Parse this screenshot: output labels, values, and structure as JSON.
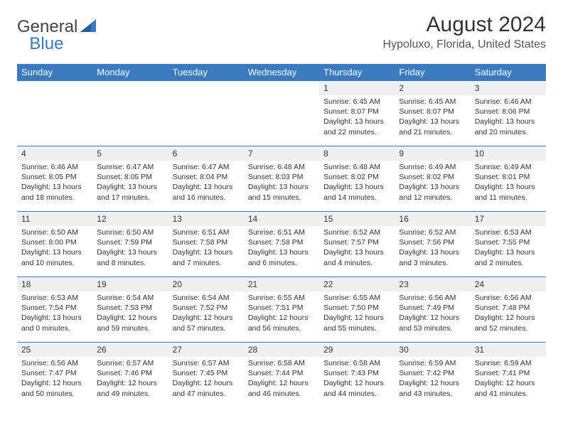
{
  "logo": {
    "general": "General",
    "blue": "Blue"
  },
  "title": "August 2024",
  "location": "Hypoluxo, Florida, United States",
  "colors": {
    "header_bg": "#3a7bbf",
    "header_fg": "#ffffff",
    "daynum_bg": "#f0f0f0",
    "row_border": "#3a7bbf",
    "text": "#333333",
    "logo_gray": "#444444",
    "logo_blue": "#3a7bbf"
  },
  "weekdays": [
    "Sunday",
    "Monday",
    "Tuesday",
    "Wednesday",
    "Thursday",
    "Friday",
    "Saturday"
  ],
  "weeks": [
    [
      null,
      null,
      null,
      null,
      {
        "n": "1",
        "sr": "6:45 AM",
        "ss": "8:07 PM",
        "dl": "13 hours and 22 minutes."
      },
      {
        "n": "2",
        "sr": "6:45 AM",
        "ss": "8:07 PM",
        "dl": "13 hours and 21 minutes."
      },
      {
        "n": "3",
        "sr": "6:46 AM",
        "ss": "8:06 PM",
        "dl": "13 hours and 20 minutes."
      }
    ],
    [
      {
        "n": "4",
        "sr": "6:46 AM",
        "ss": "8:05 PM",
        "dl": "13 hours and 18 minutes."
      },
      {
        "n": "5",
        "sr": "6:47 AM",
        "ss": "8:05 PM",
        "dl": "13 hours and 17 minutes."
      },
      {
        "n": "6",
        "sr": "6:47 AM",
        "ss": "8:04 PM",
        "dl": "13 hours and 16 minutes."
      },
      {
        "n": "7",
        "sr": "6:48 AM",
        "ss": "8:03 PM",
        "dl": "13 hours and 15 minutes."
      },
      {
        "n": "8",
        "sr": "6:48 AM",
        "ss": "8:02 PM",
        "dl": "13 hours and 14 minutes."
      },
      {
        "n": "9",
        "sr": "6:49 AM",
        "ss": "8:02 PM",
        "dl": "13 hours and 12 minutes."
      },
      {
        "n": "10",
        "sr": "6:49 AM",
        "ss": "8:01 PM",
        "dl": "13 hours and 11 minutes."
      }
    ],
    [
      {
        "n": "11",
        "sr": "6:50 AM",
        "ss": "8:00 PM",
        "dl": "13 hours and 10 minutes."
      },
      {
        "n": "12",
        "sr": "6:50 AM",
        "ss": "7:59 PM",
        "dl": "13 hours and 8 minutes."
      },
      {
        "n": "13",
        "sr": "6:51 AM",
        "ss": "7:58 PM",
        "dl": "13 hours and 7 minutes."
      },
      {
        "n": "14",
        "sr": "6:51 AM",
        "ss": "7:58 PM",
        "dl": "13 hours and 6 minutes."
      },
      {
        "n": "15",
        "sr": "6:52 AM",
        "ss": "7:57 PM",
        "dl": "13 hours and 4 minutes."
      },
      {
        "n": "16",
        "sr": "6:52 AM",
        "ss": "7:56 PM",
        "dl": "13 hours and 3 minutes."
      },
      {
        "n": "17",
        "sr": "6:53 AM",
        "ss": "7:55 PM",
        "dl": "13 hours and 2 minutes."
      }
    ],
    [
      {
        "n": "18",
        "sr": "6:53 AM",
        "ss": "7:54 PM",
        "dl": "13 hours and 0 minutes."
      },
      {
        "n": "19",
        "sr": "6:54 AM",
        "ss": "7:53 PM",
        "dl": "12 hours and 59 minutes."
      },
      {
        "n": "20",
        "sr": "6:54 AM",
        "ss": "7:52 PM",
        "dl": "12 hours and 57 minutes."
      },
      {
        "n": "21",
        "sr": "6:55 AM",
        "ss": "7:51 PM",
        "dl": "12 hours and 56 minutes."
      },
      {
        "n": "22",
        "sr": "6:55 AM",
        "ss": "7:50 PM",
        "dl": "12 hours and 55 minutes."
      },
      {
        "n": "23",
        "sr": "6:56 AM",
        "ss": "7:49 PM",
        "dl": "12 hours and 53 minutes."
      },
      {
        "n": "24",
        "sr": "6:56 AM",
        "ss": "7:48 PM",
        "dl": "12 hours and 52 minutes."
      }
    ],
    [
      {
        "n": "25",
        "sr": "6:56 AM",
        "ss": "7:47 PM",
        "dl": "12 hours and 50 minutes."
      },
      {
        "n": "26",
        "sr": "6:57 AM",
        "ss": "7:46 PM",
        "dl": "12 hours and 49 minutes."
      },
      {
        "n": "27",
        "sr": "6:57 AM",
        "ss": "7:45 PM",
        "dl": "12 hours and 47 minutes."
      },
      {
        "n": "28",
        "sr": "6:58 AM",
        "ss": "7:44 PM",
        "dl": "12 hours and 46 minutes."
      },
      {
        "n": "29",
        "sr": "6:58 AM",
        "ss": "7:43 PM",
        "dl": "12 hours and 44 minutes."
      },
      {
        "n": "30",
        "sr": "6:59 AM",
        "ss": "7:42 PM",
        "dl": "12 hours and 43 minutes."
      },
      {
        "n": "31",
        "sr": "6:59 AM",
        "ss": "7:41 PM",
        "dl": "12 hours and 41 minutes."
      }
    ]
  ],
  "labels": {
    "sunrise": "Sunrise:",
    "sunset": "Sunset:",
    "daylight": "Daylight:"
  }
}
